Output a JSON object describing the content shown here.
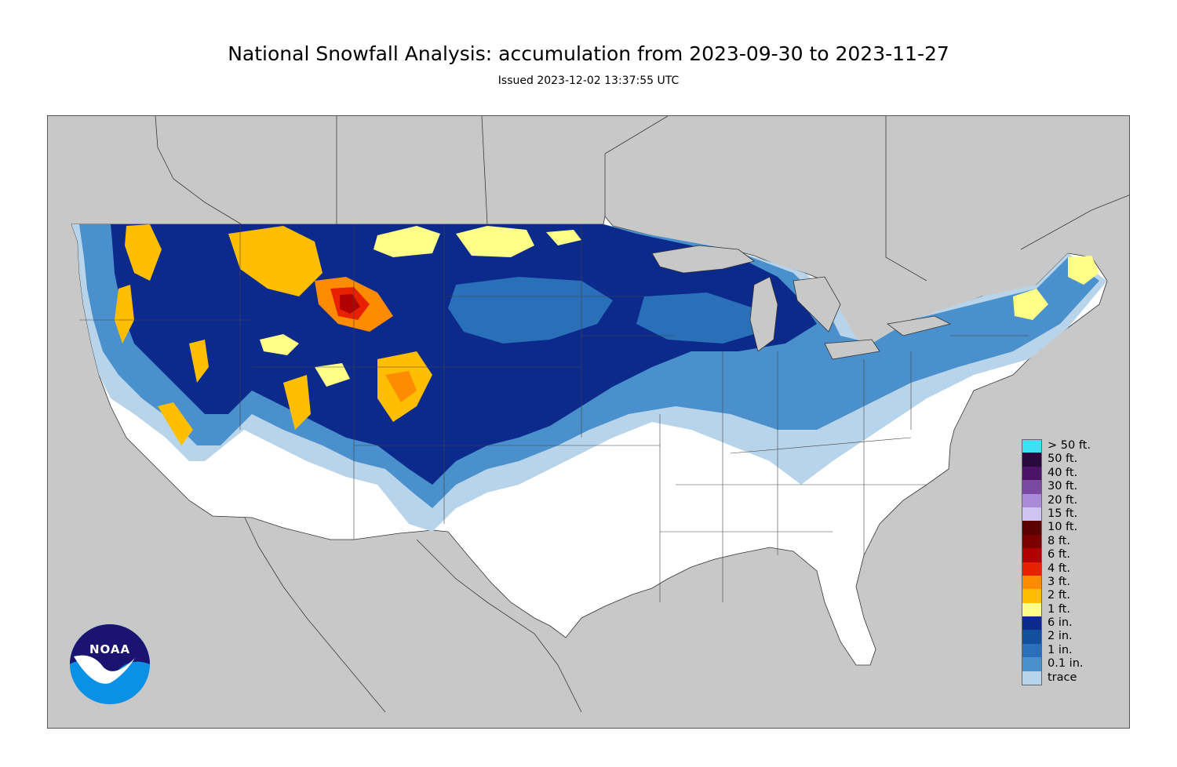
{
  "title": "National Snowfall Analysis: accumulation from 2023-09-30 to 2023-11-27",
  "subtitle": "Issued 2023-12-02 13:37:55 UTC",
  "logo": {
    "text": "NOAA",
    "colors": {
      "top": "#1a1470",
      "bottom": "#0a91e6",
      "bird": "#ffffff"
    }
  },
  "map": {
    "background_color": "#c8c8c8",
    "land_outside_color": "#c8c8c8",
    "no_snow_color": "#ffffff"
  },
  "legend": {
    "items": [
      {
        "label": "> 50 ft.",
        "color": "#3de1f5"
      },
      {
        "label": "50 ft.",
        "color": "#2a0a3c"
      },
      {
        "label": "40 ft.",
        "color": "#4b1466"
      },
      {
        "label": "30 ft.",
        "color": "#7a4aa3"
      },
      {
        "label": "20 ft.",
        "color": "#a98ad8"
      },
      {
        "label": "15 ft.",
        "color": "#cdc4f2"
      },
      {
        "label": "10 ft.",
        "color": "#5a0000"
      },
      {
        "label": "8 ft.",
        "color": "#7a0000"
      },
      {
        "label": "6 ft.",
        "color": "#b00000"
      },
      {
        "label": "4 ft.",
        "color": "#e82000"
      },
      {
        "label": "3 ft.",
        "color": "#ff8c00"
      },
      {
        "label": "2 ft.",
        "color": "#ffbf00"
      },
      {
        "label": "1 ft.",
        "color": "#ffff88"
      },
      {
        "label": "6 in.",
        "color": "#0b2a8c"
      },
      {
        "label": "2 in.",
        "color": "#10509c"
      },
      {
        "label": "1 in.",
        "color": "#2a70b8"
      },
      {
        "label": "0.1 in.",
        "color": "#4a90cc"
      },
      {
        "label": "trace",
        "color": "#b8d4ea"
      }
    ]
  }
}
